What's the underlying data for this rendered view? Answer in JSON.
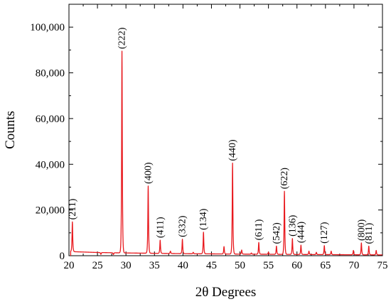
{
  "chart_data": {
    "type": "line",
    "xlabel": "2θ Degrees",
    "ylabel": "Counts",
    "xlim": [
      20,
      75
    ],
    "ylim": [
      0,
      110000
    ],
    "x_ticks": [
      20,
      25,
      30,
      35,
      40,
      45,
      50,
      55,
      60,
      65,
      70,
      75
    ],
    "y_ticks": [
      0,
      20000,
      40000,
      60000,
      80000,
      100000
    ],
    "y_tick_labels": [
      "0",
      "20,000",
      "40,000",
      "60,000",
      "80,000",
      "100,000"
    ],
    "grid": false,
    "series_color": "#e8191e",
    "baseline": [
      [
        20.3,
        1800
      ],
      [
        25,
        1400
      ],
      [
        30,
        1200
      ],
      [
        40,
        900
      ],
      [
        50,
        700
      ],
      [
        60,
        550
      ],
      [
        75,
        350
      ]
    ],
    "peaks": [
      {
        "x": 20.6,
        "y": 14800,
        "label": "(211)"
      },
      {
        "x": 29.3,
        "y": 89500,
        "label": "(222)"
      },
      {
        "x": 33.9,
        "y": 30500,
        "label": "(400)"
      },
      {
        "x": 36.0,
        "y": 6800,
        "label": "(411)"
      },
      {
        "x": 39.9,
        "y": 7200,
        "label": "(332)"
      },
      {
        "x": 43.6,
        "y": 10300,
        "label": "(134)"
      },
      {
        "x": 48.7,
        "y": 40500,
        "label": "(440)"
      },
      {
        "x": 53.3,
        "y": 5800,
        "label": "(611)"
      },
      {
        "x": 56.4,
        "y": 4200,
        "label": "(542)"
      },
      {
        "x": 57.8,
        "y": 28200,
        "label": "(622)"
      },
      {
        "x": 59.2,
        "y": 7500,
        "label": "(136)"
      },
      {
        "x": 60.7,
        "y": 4600,
        "label": "(444)"
      },
      {
        "x": 64.8,
        "y": 4400,
        "label": "(127)"
      },
      {
        "x": 71.3,
        "y": 5600,
        "label": "(800)"
      },
      {
        "x": 72.6,
        "y": 4200,
        "label": "(811)"
      },
      {
        "x": 25.6,
        "y": 600
      },
      {
        "x": 27.8,
        "y": 500
      },
      {
        "x": 37.8,
        "y": 2000
      },
      {
        "x": 41.8,
        "y": 1500
      },
      {
        "x": 47.2,
        "y": 4000
      },
      {
        "x": 50.3,
        "y": 2500
      },
      {
        "x": 52.0,
        "y": 1200
      },
      {
        "x": 55.0,
        "y": 1600
      },
      {
        "x": 62.1,
        "y": 2000
      },
      {
        "x": 63.4,
        "y": 1500
      },
      {
        "x": 66.0,
        "y": 2000
      },
      {
        "x": 69.9,
        "y": 2300
      },
      {
        "x": 73.9,
        "y": 2300
      }
    ]
  }
}
